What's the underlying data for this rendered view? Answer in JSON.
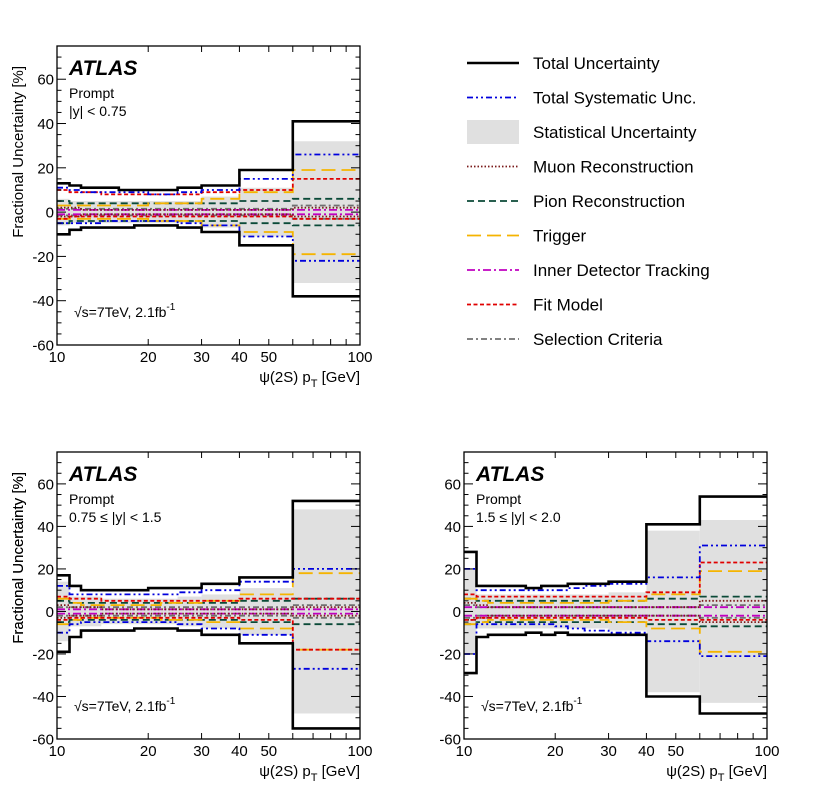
{
  "chart_data": {
    "type": "line",
    "x_unit_note": "psi(2S) pT in GeV, log x-axis",
    "series_styles": {
      "Total Uncertainty": {
        "color": "#000000",
        "dash": ""
      },
      "Total Systematic Unc.": {
        "color": "#0000dd",
        "dash": "6,3,2,3,2,3"
      },
      "Statistical Uncertainty": {
        "color": "#e0e0e0",
        "dash": ""
      },
      "Muon Reconstruction": {
        "color": "#7a1a1a",
        "dash": "1.5,2"
      },
      "Pion Reconstruction": {
        "color": "#0b4a38",
        "dash": "7,4"
      },
      "Trigger": {
        "color": "#f5b400",
        "dash": "14,6"
      },
      "Inner Detector Tracking": {
        "color": "#c000c0",
        "dash": "8,3,2,3"
      },
      "Fit Model": {
        "color": "#e00000",
        "dash": "4,2.5"
      },
      "Selection Criteria": {
        "color": "#707070",
        "dash": "6,3,2,3"
      }
    },
    "legend": {
      "placement": "top-right",
      "entries": [
        "Total Uncertainty",
        "Total Systematic Unc.",
        "Statistical Uncertainty",
        "Muon Reconstruction",
        "Pion Reconstruction",
        "Trigger",
        "Inner Detector Tracking",
        "Fit Model",
        "Selection Criteria"
      ]
    },
    "panels": [
      {
        "id": "panel-central",
        "atlas": "ATLAS",
        "selection_line1": "Prompt",
        "selection_line2": "|y| < 0.75",
        "energy": "√s=7TeV, 2.1fb",
        "energy_sup": "-1",
        "ylabel": "Fractional Uncertainty [%]",
        "xlabel_main": "ψ(2S) p",
        "xlabel_sub": "T",
        "xlabel_unit": " [GeV]",
        "xlim": [
          10,
          100
        ],
        "ylim": [
          -60,
          75
        ],
        "xticks": [
          10,
          20,
          30,
          40,
          50,
          100
        ],
        "yticks": [
          -60,
          -40,
          -20,
          0,
          20,
          40,
          60
        ],
        "bins": [
          10,
          11,
          12,
          14,
          16,
          18,
          20,
          22,
          25,
          30,
          40,
          60,
          100
        ],
        "stat": [
          6,
          5,
          5,
          5,
          5,
          5,
          5,
          5,
          5,
          7,
          11,
          32
        ],
        "series": [
          {
            "name": "Total Uncertainty",
            "values": [
              13,
              12,
              11,
              11,
              10,
              10,
              10,
              10,
              11,
              12,
              19,
              41
            ],
            "lower": [
              -10,
              -8,
              -7,
              -7,
              -7,
              -6,
              -6,
              -6,
              -7,
              -9,
              -15,
              -38
            ]
          },
          {
            "name": "Total Systematic Unc.",
            "values": [
              11,
              10,
              9,
              9,
              9,
              9,
              8,
              8,
              9,
              10,
              15,
              26
            ],
            "lower": [
              -5,
              -5,
              -5,
              -4,
              -4,
              -4,
              -4,
              -4,
              -5,
              -6,
              -11,
              -22
            ]
          },
          {
            "name": "Muon Reconstruction",
            "values": [
              2,
              2,
              1,
              1,
              1,
              1,
              1,
              1,
              1,
              1,
              1,
              2
            ],
            "lower": [
              -2,
              -2,
              -1,
              -1,
              -1,
              -1,
              -1,
              -1,
              -1,
              -1,
              -1,
              -2
            ]
          },
          {
            "name": "Pion Reconstruction",
            "values": [
              5,
              4,
              4,
              4,
              4,
              4,
              4,
              4,
              4,
              4,
              5,
              6
            ],
            "lower": [
              -5,
              -4,
              -4,
              -4,
              -4,
              -4,
              -4,
              -4,
              -4,
              -4,
              -5,
              -6
            ]
          },
          {
            "name": "Trigger",
            "values": [
              3,
              3,
              3,
              3,
              3,
              3,
              4,
              4,
              4,
              6,
              9,
              19
            ],
            "lower": [
              -3,
              -3,
              -3,
              -3,
              -3,
              -3,
              -4,
              -4,
              -4,
              -6,
              -9,
              -19
            ]
          },
          {
            "name": "Inner Detector Tracking",
            "values": [
              1,
              1,
              1,
              1,
              1,
              1,
              1,
              1,
              1,
              1,
              1,
              1
            ],
            "lower": [
              -1,
              -1,
              -1,
              -1,
              -1,
              -1,
              -1,
              -1,
              -1,
              -1,
              -1,
              -1
            ]
          },
          {
            "name": "Fit Model",
            "values": [
              10,
              9,
              9,
              8,
              8,
              8,
              8,
              8,
              8,
              9,
              10,
              15
            ],
            "lower": [
              -3,
              -2,
              -2,
              -2,
              -2,
              -2,
              -2,
              -2,
              -2,
              -2,
              -2,
              -3
            ]
          },
          {
            "name": "Selection Criteria",
            "values": [
              1.5,
              1.5,
              1.5,
              1.5,
              1.5,
              1.5,
              1.5,
              1.5,
              1.5,
              1.5,
              1.5,
              3
            ],
            "lower": [
              -1.5,
              -1.5,
              -1.5,
              -1.5,
              -1.5,
              -1.5,
              -1.5,
              -1.5,
              -1.5,
              -1.5,
              -1.5,
              -3
            ]
          }
        ]
      },
      {
        "id": "panel-middle",
        "atlas": "ATLAS",
        "selection_line1": "Prompt",
        "selection_line2": "0.75 ≤ |y| < 1.5",
        "energy": "√s=7TeV, 2.1fb",
        "energy_sup": "-1",
        "ylabel": "Fractional Uncertainty [%]",
        "xlabel_main": "ψ(2S) p",
        "xlabel_sub": "T",
        "xlabel_unit": " [GeV]",
        "xlim": [
          10,
          100
        ],
        "ylim": [
          -60,
          75
        ],
        "xticks": [
          10,
          20,
          30,
          40,
          50,
          100
        ],
        "yticks": [
          -60,
          -40,
          -20,
          0,
          20,
          40,
          60
        ],
        "bins": [
          10,
          11,
          12,
          14,
          16,
          18,
          20,
          22,
          25,
          30,
          40,
          60,
          100
        ],
        "stat": [
          14,
          7,
          7,
          6,
          6,
          6,
          6,
          6,
          7,
          8,
          11,
          48
        ],
        "series": [
          {
            "name": "Total Uncertainty",
            "values": [
              17,
              12,
              10,
              10,
              10,
              10,
              11,
              11,
              11,
              13,
              16,
              52
            ],
            "lower": [
              -19,
              -12,
              -9,
              -9,
              -9,
              -8,
              -8,
              -8,
              -9,
              -11,
              -15,
              -55
            ]
          },
          {
            "name": "Total Systematic Unc.",
            "values": [
              12,
              8,
              8,
              8,
              8,
              8,
              8,
              8,
              9,
              10,
              14,
              20
            ],
            "lower": [
              -10,
              -6,
              -5,
              -5,
              -5,
              -5,
              -5,
              -5,
              -6,
              -8,
              -11,
              -27
            ]
          },
          {
            "name": "Muon Reconstruction",
            "values": [
              3,
              2,
              2,
              1,
              1,
              1,
              1,
              1,
              1,
              1,
              1,
              2
            ],
            "lower": [
              -3,
              -2,
              -2,
              -1,
              -1,
              -1,
              -1,
              -1,
              -1,
              -1,
              -1,
              -2
            ]
          },
          {
            "name": "Pion Reconstruction",
            "values": [
              5,
              4,
              4,
              4,
              4,
              4,
              4,
              4,
              4,
              4,
              5,
              6
            ],
            "lower": [
              -5,
              -4,
              -4,
              -4,
              -4,
              -4,
              -4,
              -4,
              -4,
              -4,
              -5,
              -6
            ]
          },
          {
            "name": "Trigger",
            "values": [
              6,
              4,
              3,
              3,
              3,
              3,
              3,
              4,
              4,
              5,
              8,
              18
            ],
            "lower": [
              -6,
              -4,
              -3,
              -3,
              -3,
              -3,
              -3,
              -4,
              -4,
              -5,
              -8,
              -18
            ]
          },
          {
            "name": "Inner Detector Tracking",
            "values": [
              1,
              1,
              1,
              1,
              1,
              1,
              1,
              1,
              1,
              1,
              1,
              1
            ],
            "lower": [
              -1,
              -1,
              -1,
              -1,
              -1,
              -1,
              -1,
              -1,
              -1,
              -1,
              -1,
              -1
            ]
          },
          {
            "name": "Fit Model",
            "values": [
              7,
              6,
              6,
              5,
              5,
              5,
              5,
              5,
              5,
              5,
              6,
              6
            ],
            "lower": [
              -4,
              -3,
              -3,
              -3,
              -3,
              -3,
              -3,
              -3,
              -3,
              -3,
              -4,
              -18
            ]
          },
          {
            "name": "Selection Criteria",
            "values": [
              2,
              2,
              2,
              2,
              2,
              2,
              2,
              2,
              2,
              2,
              2,
              3
            ],
            "lower": [
              -2,
              -2,
              -2,
              -2,
              -2,
              -2,
              -2,
              -2,
              -2,
              -2,
              -2,
              -3
            ]
          }
        ]
      },
      {
        "id": "panel-forward",
        "atlas": "ATLAS",
        "selection_line1": "Prompt",
        "selection_line2": "1.5 ≤ |y| < 2.0",
        "energy": "√s=7TeV, 2.1fb",
        "energy_sup": "-1",
        "ylabel": "Fractional Uncertainty [%]",
        "xlabel_main": "ψ(2S) p",
        "xlabel_sub": "T",
        "xlabel_unit": " [GeV]",
        "xlim": [
          10,
          100
        ],
        "ylim": [
          -60,
          75
        ],
        "xticks": [
          10,
          20,
          30,
          40,
          50,
          100
        ],
        "yticks": [
          -60,
          -40,
          -20,
          0,
          20,
          40,
          60
        ],
        "bins": [
          10,
          11,
          12,
          14,
          16,
          18,
          20,
          22,
          25,
          30,
          40,
          60,
          100
        ],
        "stat": [
          20,
          8,
          8,
          8,
          8,
          8,
          8,
          8,
          8,
          9,
          38,
          43
        ],
        "series": [
          {
            "name": "Total Uncertainty",
            "values": [
              28,
              12,
              12,
              12,
              11,
              12,
              12,
              13,
              13,
              14,
              41,
              54
            ],
            "lower": [
              -29,
              -12,
              -11,
              -11,
              -10,
              -11,
              -10,
              -11,
              -11,
              -11,
              -40,
              -48
            ]
          },
          {
            "name": "Total Systematic Unc.",
            "values": [
              20,
              10,
              10,
              10,
              10,
              10,
              10,
              11,
              12,
              13,
              16,
              31
            ],
            "lower": [
              -20,
              -6,
              -6,
              -6,
              -6,
              -6,
              -7,
              -8,
              -9,
              -10,
              -14,
              -21
            ]
          },
          {
            "name": "Muon Reconstruction",
            "values": [
              4,
              3,
              2,
              2,
              2,
              2,
              2,
              2,
              2,
              2,
              2,
              5
            ],
            "lower": [
              -4,
              -3,
              -2,
              -2,
              -2,
              -2,
              -2,
              -2,
              -2,
              -2,
              -2,
              -5
            ]
          },
          {
            "name": "Pion Reconstruction",
            "values": [
              6,
              5,
              5,
              5,
              5,
              5,
              5,
              5,
              5,
              5,
              6,
              7
            ],
            "lower": [
              -6,
              -5,
              -5,
              -5,
              -5,
              -5,
              -5,
              -5,
              -5,
              -5,
              -6,
              -7
            ]
          },
          {
            "name": "Trigger",
            "values": [
              6,
              5,
              4,
              4,
              4,
              4,
              4,
              4,
              4,
              5,
              8,
              19
            ],
            "lower": [
              -6,
              -5,
              -4,
              -4,
              -4,
              -4,
              -4,
              -4,
              -4,
              -5,
              -8,
              -19
            ]
          },
          {
            "name": "Inner Detector Tracking",
            "values": [
              2,
              2,
              2,
              2,
              2,
              2,
              2,
              2,
              2,
              2,
              2,
              2
            ],
            "lower": [
              -2,
              -2,
              -2,
              -2,
              -2,
              -2,
              -2,
              -2,
              -2,
              -2,
              -2,
              -2
            ]
          },
          {
            "name": "Fit Model",
            "values": [
              8,
              7,
              7,
              7,
              7,
              7,
              7,
              7,
              7,
              7,
              9,
              23
            ],
            "lower": [
              -4,
              -3,
              -3,
              -3,
              -3,
              -3,
              -3,
              -3,
              -3,
              -3,
              -4,
              -4
            ]
          },
          {
            "name": "Selection Criteria",
            "values": [
              3,
              2,
              2,
              2,
              2,
              2,
              2,
              2,
              2,
              2,
              2,
              3
            ],
            "lower": [
              -3,
              -2,
              -2,
              -2,
              -2,
              -2,
              -2,
              -2,
              -2,
              -2,
              -2,
              -3
            ]
          }
        ]
      }
    ]
  }
}
